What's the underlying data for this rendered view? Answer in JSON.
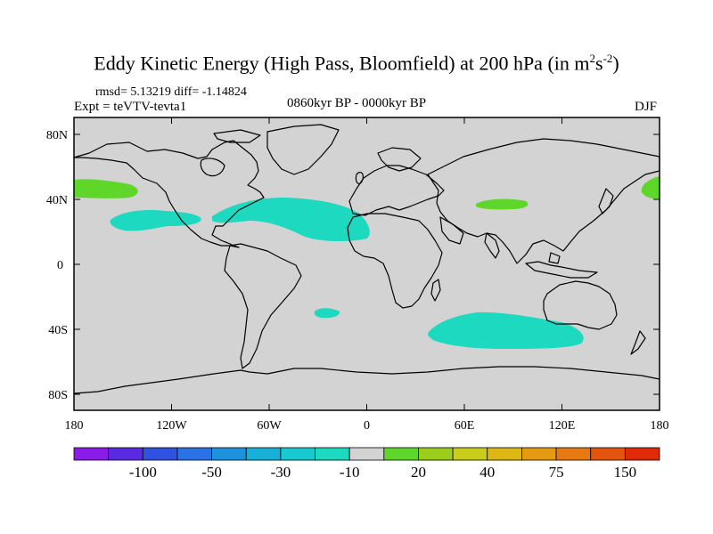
{
  "title": {
    "main": "Eddy Kinetic Energy (High Pass, Bloomfield) at 200 hPa (in m",
    "sup1": "2",
    "mid": "s",
    "sup2": "-2",
    "close": ")"
  },
  "stats": {
    "rmsd_text": "rmsd= 5.13219 diff= -1.14824"
  },
  "subtitle": {
    "left": "Expt = teVTV-tevta1",
    "center": "0860kyr BP - 0000kyr BP",
    "right": "DJF"
  },
  "map": {
    "lat_labels": [
      "80N",
      "40N",
      "0",
      "40S",
      "80S"
    ],
    "lon_labels": [
      "180",
      "120W",
      "60W",
      "0",
      "60E",
      "120E",
      "180"
    ],
    "land_color": "#d3d3d3",
    "coast_color": "#000000"
  },
  "colorbar": {
    "colors": [
      "#8a1be8",
      "#5a2ae0",
      "#2f52e0",
      "#2a73e6",
      "#1d93e0",
      "#16b0d8",
      "#17c9d1",
      "#1cd9c0",
      "#d3d3d3",
      "#5ed62a",
      "#9ccd1a",
      "#c9cc18",
      "#ddb814",
      "#e69a12",
      "#e67a10",
      "#e4540c",
      "#e02a08"
    ],
    "labels": [
      "-100",
      "-50",
      "-30",
      "-10",
      "20",
      "40",
      "75",
      "150"
    ]
  },
  "chart_data": {
    "type": "map",
    "title": "Eddy Kinetic Energy (High Pass, Bloomfield) at 200 hPa (in m^2 s^-2)",
    "period": "0860kyr BP - 0000kyr BP",
    "season": "DJF",
    "experiment": "teVTV-tevta1",
    "rmsd": 5.13219,
    "diff": -1.14824,
    "lat_range": [
      -90,
      90
    ],
    "lon_range": [
      -180,
      180
    ],
    "anomaly_regions": [
      {
        "region": "North Atlantic / eastern N. America (25N-45N, 90W-0)",
        "level": "-20 to -10",
        "color": "#1cd9c0"
      },
      {
        "region": "Eastern North Pacific (25N-40N, 160W-100W)",
        "level": "-20 to -10",
        "color": "#1cd9c0"
      },
      {
        "region": "Southern Indian Ocean (35S-50S, 40E-120E)",
        "level": "-20 to -10",
        "color": "#1cd9c0"
      },
      {
        "region": "South Atlantic small patch (~33S, 25W)",
        "level": "-20 to -10",
        "color": "#1cd9c0"
      },
      {
        "region": "Western North Pacific (35N-50N, 165E-150W)",
        "level": "10 to 20",
        "color": "#5ed62a"
      },
      {
        "region": "Central Asia (~38N, 70E-85E)",
        "level": "10 to 20",
        "color": "#5ed62a"
      }
    ],
    "colorbar_labels": [
      "-100",
      "-50",
      "-30",
      "-10",
      "20",
      "40",
      "75",
      "150"
    ]
  }
}
